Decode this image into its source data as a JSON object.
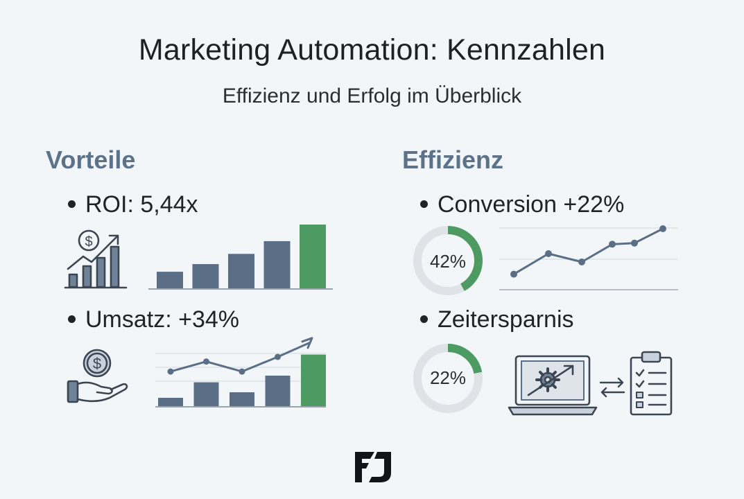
{
  "header": {
    "title": "Marketing Automation: Kennzahlen",
    "subtitle": "Effizienz und Erfolg im Überblick"
  },
  "colors": {
    "accent_green": "#4e9a63",
    "bar_slate": "#5a6e86",
    "heading_slate": "#5b7289",
    "donut_track": "#dfe3e7",
    "line_slate": "#5a6e86"
  },
  "left": {
    "heading": "Vorteile",
    "roi": {
      "label": "ROI: 5,44x",
      "icon": "money-growth-chart-icon",
      "bars": [
        0.26,
        0.38,
        0.54,
        0.74,
        1.0
      ]
    },
    "umsatz": {
      "label": "Umsatz: +34%",
      "icon": "hand-coin-icon",
      "bars": [
        0.15,
        0.43,
        0.25,
        0.55,
        0.93
      ],
      "line": [
        0.52,
        0.67,
        0.52,
        0.74,
        0.96
      ]
    }
  },
  "right": {
    "heading": "Effizienz",
    "conversion": {
      "label": "Conversion +22%",
      "donut_value": 0.42,
      "donut_label": "42%",
      "line": [
        0.18,
        0.55,
        0.4,
        0.72,
        0.74,
        1.0
      ]
    },
    "zeitersparnis": {
      "label": "Zeitersparnis",
      "donut_value": 0.22,
      "donut_label": "22%",
      "icons": [
        "laptop-gear-icon",
        "swap-arrows-icon",
        "clipboard-checklist-icon"
      ]
    }
  },
  "footer": {
    "logo_icon": "brand-logo-icon"
  }
}
